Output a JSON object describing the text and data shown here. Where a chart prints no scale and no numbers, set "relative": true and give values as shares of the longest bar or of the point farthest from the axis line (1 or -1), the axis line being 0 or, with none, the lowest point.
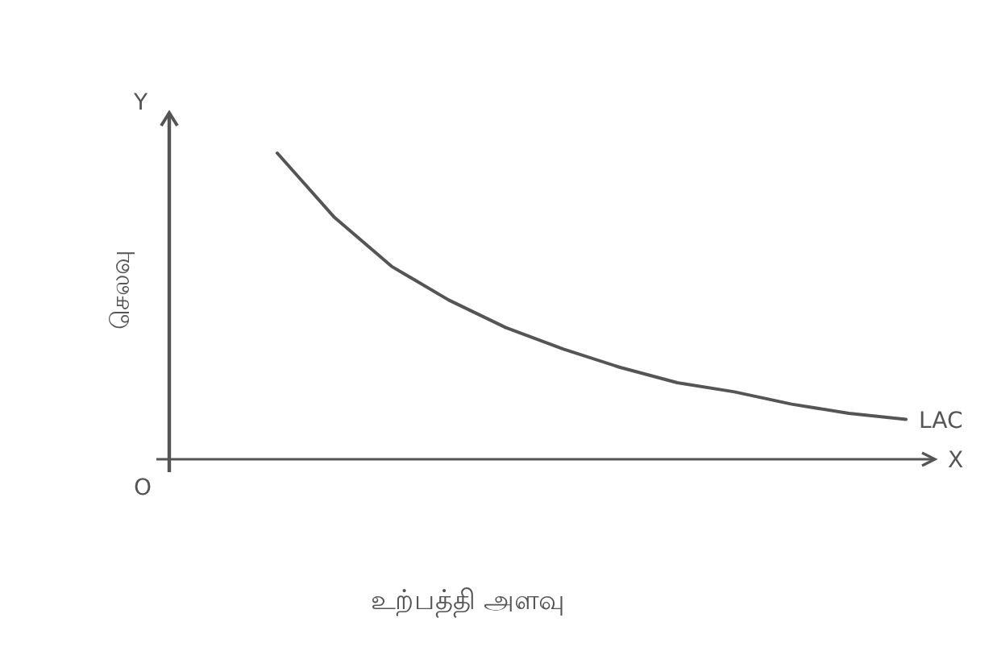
{
  "chart_data": {
    "type": "line",
    "relative": true,
    "xlabel": "உற்பத்தி அளவு",
    "ylabel": "செலவு",
    "annotations": [
      "O",
      "Y",
      "X"
    ],
    "categories": [
      null,
      null,
      null,
      null,
      null,
      null,
      null,
      null,
      null,
      null,
      null,
      null
    ],
    "series": [
      {
        "name": "LAC",
        "color": "#555555",
        "values": [
          1,
          0.79,
          0.63,
          0.52,
          0.43,
          0.36,
          0.3,
          0.25,
          0.22,
          0.18,
          0.15,
          0.13
        ]
      }
    ]
  }
}
